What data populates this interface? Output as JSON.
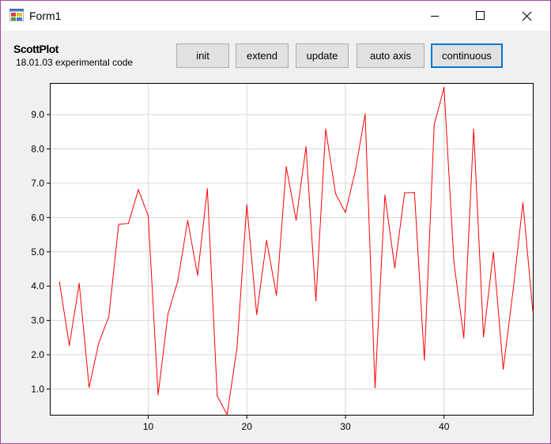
{
  "window": {
    "title": "Form1",
    "icon": "winforms-app-icon"
  },
  "header": {
    "title": "ScottPlot",
    "subtitle": "18.01.03 experimental code"
  },
  "toolbar": {
    "buttons": [
      {
        "id": "init",
        "label": "init"
      },
      {
        "id": "extend",
        "label": "extend"
      },
      {
        "id": "update",
        "label": "update"
      },
      {
        "id": "auto_axis",
        "label": "auto axis"
      },
      {
        "id": "continuous",
        "label": "continuous",
        "focused": true
      }
    ]
  },
  "chart_data": {
    "type": "line",
    "title": "",
    "xlabel": "",
    "ylabel": "",
    "xlim": [
      0.1,
      49
    ],
    "ylim": [
      0.25,
      9.9
    ],
    "x_ticks": [
      10,
      20,
      30,
      40
    ],
    "x_tick_labels": [
      "10",
      "20",
      "30",
      "40"
    ],
    "y_ticks": [
      1.0,
      2.0,
      3.0,
      4.0,
      5.0,
      6.0,
      7.0,
      8.0,
      9.0
    ],
    "y_tick_labels": [
      "1.0",
      "2.0",
      "3.0",
      "4.0",
      "5.0",
      "6.0",
      "7.0",
      "8.0",
      "9.0"
    ],
    "grid": true,
    "line_color": "#ff0000",
    "series": [
      {
        "x": [
          1,
          2,
          3,
          4,
          5,
          6,
          7,
          8,
          9,
          10,
          11,
          12,
          13,
          14,
          15,
          16,
          17,
          18,
          19,
          20,
          21,
          22,
          23,
          24,
          25,
          26,
          27,
          28,
          29,
          30,
          31,
          32,
          33,
          34,
          35,
          36,
          37,
          38,
          39,
          40,
          41,
          42,
          43,
          44,
          45,
          46,
          47,
          48,
          49
        ],
        "values": [
          4.12,
          2.27,
          4.08,
          1.05,
          2.36,
          3.1,
          5.8,
          5.83,
          6.81,
          6.05,
          0.83,
          3.18,
          4.15,
          5.91,
          4.32,
          6.84,
          0.8,
          0.25,
          2.2,
          6.37,
          3.17,
          5.33,
          3.73,
          7.48,
          5.92,
          8.07,
          3.57,
          8.58,
          6.69,
          6.15,
          7.36,
          9.02,
          1.04,
          6.65,
          4.53,
          6.72,
          6.73,
          1.84,
          8.71,
          9.79,
          4.7,
          2.49,
          8.57,
          2.52,
          4.99,
          1.58,
          3.89,
          6.43,
          3.27
        ]
      }
    ]
  }
}
